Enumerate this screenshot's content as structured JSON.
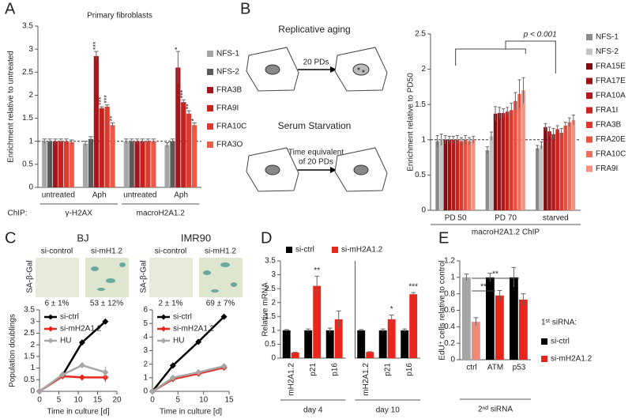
{
  "panel_labels": [
    "A",
    "B",
    "C",
    "D",
    "E"
  ],
  "diagram_B": {
    "rows": [
      {
        "title": "Replicative aging",
        "arrow_label": [
          "20 PDs"
        ]
      },
      {
        "title": "Serum Starvation",
        "arrow_label": [
          "Time equivalent",
          "of 20 PDs"
        ]
      }
    ]
  },
  "senescence_C": {
    "stain_label": "SA-β-Gal",
    "cell_lines": [
      {
        "name": "BJ",
        "conditions": [
          "si-control",
          "si-mH1.2"
        ],
        "percentages": [
          "6 ± 1%",
          "53 ± 12%"
        ]
      },
      {
        "name": "IMR90",
        "conditions": [
          "si-control",
          "si-mH1.2"
        ],
        "percentages": [
          "2 ± 1%",
          "69 ± 7%"
        ]
      }
    ]
  },
  "chart_data": [
    {
      "type": "bar",
      "title": "Primary fibroblasts",
      "y_label": "Enrichment relative to untreated",
      "categories": [
        "untreated",
        "Aph",
        "untreated",
        "Aph"
      ],
      "group_axis_label": "ChIP:",
      "groups": [
        "γ-H2AX",
        "macroH2A1.2"
      ],
      "ylim": [
        0,
        3.5
      ],
      "yticks": [
        0,
        0.5,
        1,
        1.5,
        2,
        2.5,
        3,
        3.5
      ],
      "reference_line": 1,
      "series": [
        {
          "name": "NFS-1",
          "color": "#a6a6a6",
          "values": [
            1,
            0.95,
            1,
            0.92
          ],
          "errors": [
            0.05,
            0.05,
            0.05,
            0.05
          ]
        },
        {
          "name": "NFS-2",
          "color": "#595959",
          "values": [
            1,
            1.05,
            1,
            1.0
          ],
          "errors": [
            0.05,
            0.05,
            0.05,
            0.05
          ]
        },
        {
          "name": "FRA3B",
          "color": "#a3161b",
          "values": [
            1,
            2.85,
            1,
            2.6
          ],
          "errors": [
            0.05,
            0.1,
            0.05,
            0.35
          ],
          "significance": [
            null,
            "***",
            null,
            "*"
          ]
        },
        {
          "name": "FRA9I",
          "color": "#c8201e",
          "values": [
            1,
            1.72,
            1,
            1.85
          ],
          "errors": [
            0.05,
            0.03,
            0.05,
            0.05
          ],
          "significance": [
            null,
            "***",
            null,
            "***"
          ]
        },
        {
          "name": "FRA10C",
          "color": "#de3b2e",
          "values": [
            1,
            1.75,
            1,
            1.6
          ],
          "errors": [
            0.05,
            0.04,
            0.05,
            0.06
          ],
          "significance": [
            null,
            "***",
            null,
            "**"
          ]
        },
        {
          "name": "FRA3O",
          "color": "#ee5a45",
          "values": [
            0.98,
            1.35,
            1,
            1.35
          ],
          "errors": [
            0.05,
            0.05,
            0.05,
            0.05
          ],
          "significance": [
            null,
            "**",
            null,
            "*"
          ]
        }
      ]
    },
    {
      "type": "bar",
      "y_label": "Enrichment relative to PD50",
      "x_label": "macroH2A1.2 ChIP",
      "annotation": "p < 0.001",
      "categories": [
        "PD 50",
        "PD 70",
        "starved"
      ],
      "ylim": [
        0,
        2.5
      ],
      "yticks": [
        0,
        0.5,
        1,
        1.5,
        2,
        2.5
      ],
      "reference_line": 1,
      "series": [
        {
          "name": "NFS-1",
          "color": "#8c8c8c",
          "values": [
            0.98,
            0.85,
            0.88
          ],
          "errors": [
            0.08,
            0.05,
            0.04
          ]
        },
        {
          "name": "NFS-2",
          "color": "#c4c4c4",
          "values": [
            1.0,
            1.05,
            0.92
          ],
          "errors": [
            0.08,
            0.06,
            0.05
          ]
        },
        {
          "name": "FRA15E",
          "color": "#7f0d10",
          "values": [
            1.0,
            1.37,
            1.18
          ],
          "errors": [
            0.06,
            0.1,
            0.05
          ]
        },
        {
          "name": "FRA17E",
          "color": "#9b1316",
          "values": [
            1.0,
            1.38,
            1.12
          ],
          "errors": [
            0.05,
            0.08,
            0.06
          ]
        },
        {
          "name": "FRA10A",
          "color": "#b5181b",
          "values": [
            1.0,
            1.38,
            1.08
          ],
          "errors": [
            0.05,
            0.06,
            0.08
          ]
        },
        {
          "name": "FRA1I",
          "color": "#c92320",
          "values": [
            1.0,
            1.4,
            1.15
          ],
          "errors": [
            0.06,
            0.06,
            0.05
          ]
        },
        {
          "name": "FRA3B",
          "color": "#dd3a2e",
          "values": [
            0.98,
            1.42,
            1.1
          ],
          "errors": [
            0.05,
            0.1,
            0.06
          ]
        },
        {
          "name": "FRA20E",
          "color": "#e9503f",
          "values": [
            1.0,
            1.55,
            1.2
          ],
          "errors": [
            0.06,
            0.12,
            0.05
          ]
        },
        {
          "name": "FRA10C",
          "color": "#f06e5c",
          "values": [
            0.98,
            1.65,
            1.25
          ],
          "errors": [
            0.05,
            0.2,
            0.06
          ]
        },
        {
          "name": "FRA9I",
          "color": "#f5907f",
          "values": [
            1.0,
            1.7,
            1.28
          ],
          "errors": [
            0.05,
            0.18,
            0.07
          ]
        }
      ]
    },
    {
      "type": "line",
      "y_label": "Population doublings",
      "x_label": "Time in culture [d]",
      "x": [
        0,
        6,
        11,
        17
      ],
      "xlim": [
        0,
        20
      ],
      "xticks": [
        0,
        5,
        10,
        15,
        20
      ],
      "ylim": [
        0,
        3.5
      ],
      "yticks": [
        0,
        0.5,
        1,
        1.5,
        2,
        2.5,
        3,
        3.5
      ],
      "series": [
        {
          "name": "si-ctrl",
          "color": "#000000",
          "values": [
            0,
            0.7,
            2.1,
            3.0
          ],
          "errors": [
            0,
            0.05,
            0.05,
            0.1
          ]
        },
        {
          "name": "si-mH2A1.2",
          "color": "#e8261c",
          "values": [
            0,
            0.65,
            0.6,
            0.6
          ],
          "errors": [
            0,
            0.08,
            0.12,
            0.2
          ]
        },
        {
          "name": "HU",
          "color": "#a6a6a6",
          "values": [
            0,
            0.72,
            1.12,
            0.82
          ],
          "errors": [
            0,
            0.05,
            0.08,
            0.25
          ]
        }
      ]
    },
    {
      "type": "line",
      "x_label": "Time in culture [d]",
      "x": [
        0,
        4,
        9,
        14
      ],
      "xlim": [
        0,
        15
      ],
      "xticks": [
        0,
        5,
        10,
        15
      ],
      "ylim": [
        0,
        6
      ],
      "yticks": [
        0,
        1,
        2,
        3,
        4,
        5,
        6
      ],
      "series": [
        {
          "name": "si-ctrl",
          "color": "#000000",
          "values": [
            0,
            1.9,
            3.65,
            5.5
          ],
          "errors": [
            0,
            0.08,
            0.1,
            0.2
          ]
        },
        {
          "name": "si-mH2A1.2",
          "color": "#e8261c",
          "values": [
            0,
            0.9,
            1.3,
            1.75
          ],
          "errors": [
            0,
            0.05,
            0.08,
            0.1
          ]
        },
        {
          "name": "HU",
          "color": "#a6a6a6",
          "values": [
            0,
            1.0,
            1.4,
            1.85
          ],
          "errors": [
            0,
            0.05,
            0.08,
            0.1
          ]
        }
      ]
    },
    {
      "type": "bar",
      "y_label": "Relative mRNA",
      "facets": [
        "day 4",
        "day 10"
      ],
      "categories": [
        "mH2A1.2",
        "p21",
        "p16",
        "mH2A1.2",
        "p21",
        "p16"
      ],
      "ylim": [
        0,
        3.5
      ],
      "yticks": [
        0,
        0.5,
        1,
        1.5,
        2,
        2.5,
        3,
        3.5
      ],
      "series": [
        {
          "name": "si-ctrl",
          "color": "#000000",
          "values": [
            1,
            1,
            1,
            1,
            1,
            1
          ],
          "errors": [
            0.03,
            0.05,
            0.08,
            0.03,
            0.05,
            0.05
          ]
        },
        {
          "name": "si-mH2A1.2",
          "color": "#e8261c",
          "values": [
            0.2,
            2.6,
            1.4,
            0.22,
            1.4,
            2.3
          ],
          "errors": [
            0.01,
            0.35,
            0.3,
            0.01,
            0.15,
            0.06
          ],
          "significance": [
            null,
            "**",
            null,
            null,
            "*",
            "***"
          ]
        }
      ]
    },
    {
      "type": "bar",
      "y_label": "EdU⁺ cells relative to control",
      "x_label": "2ⁿᵈ siRNA",
      "legend_title": "1ˢᵗ siRNA:",
      "categories": [
        "ctrl",
        "ATM",
        "p53"
      ],
      "ylim": [
        0,
        1.2
      ],
      "yticks": [
        0,
        0.2,
        0.4,
        0.6,
        0.8,
        1,
        1.2
      ],
      "bracket_labels": [
        "**",
        "**"
      ],
      "series": [
        {
          "name": "si-ctrl",
          "color": "#000000",
          "point_colors": [
            "#a6a6a6",
            "#000000",
            "#000000"
          ],
          "values": [
            1,
            1,
            1
          ],
          "errors": [
            0.04,
            0.05,
            0.12
          ]
        },
        {
          "name": "si-mH2A1.2",
          "color": "#e8261c",
          "point_colors": [
            "#f08a78",
            "#e8261c",
            "#e8261c"
          ],
          "values": [
            0.46,
            0.78,
            0.73
          ],
          "errors": [
            0.05,
            0.06,
            0.07
          ]
        }
      ]
    }
  ]
}
